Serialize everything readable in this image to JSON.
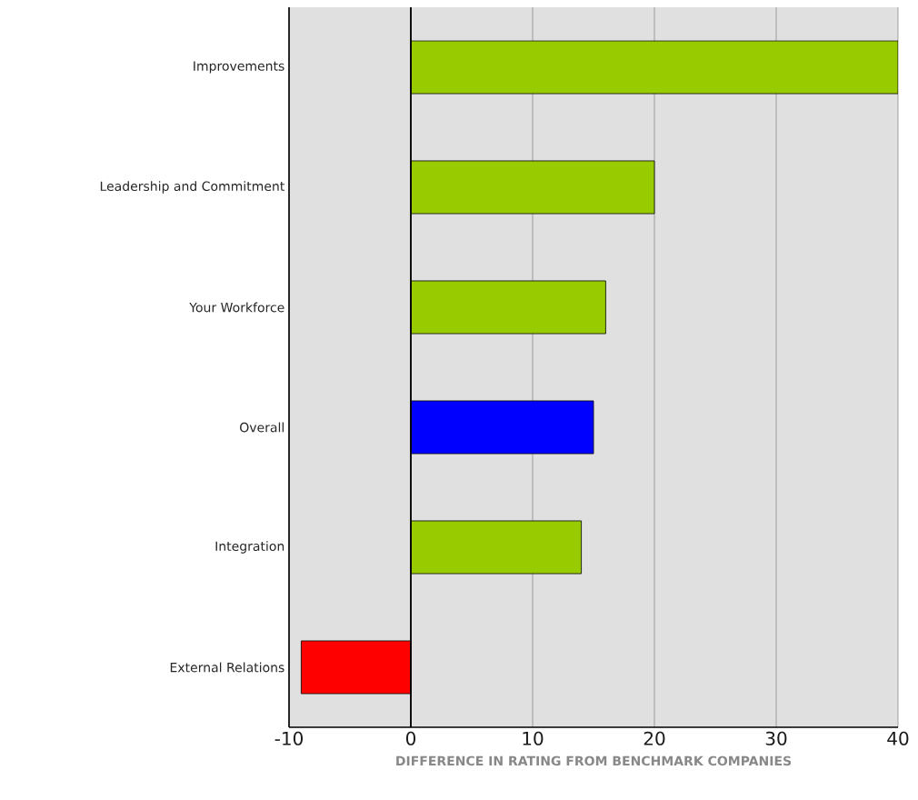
{
  "chart_data": {
    "type": "bar",
    "orientation": "horizontal",
    "xlabel": "DIFFERENCE IN RATING FROM BENCHMARK COMPANIES",
    "categories": [
      "Improvements",
      "Leadership and Commitment",
      "Your Workforce",
      "Overall",
      "Integration",
      "External Relations"
    ],
    "values": [
      40,
      20,
      16,
      15,
      14,
      -9
    ],
    "colors": [
      "#99cc00",
      "#99cc00",
      "#99cc00",
      "#0000ff",
      "#99cc00",
      "#ff0000"
    ],
    "xlim": [
      -10,
      40
    ],
    "xticks": [
      -10,
      0,
      10,
      20,
      30,
      40
    ],
    "grid": "x",
    "ref_lines": [
      {
        "axis": "x",
        "value": 0,
        "color": "#000000"
      }
    ]
  }
}
